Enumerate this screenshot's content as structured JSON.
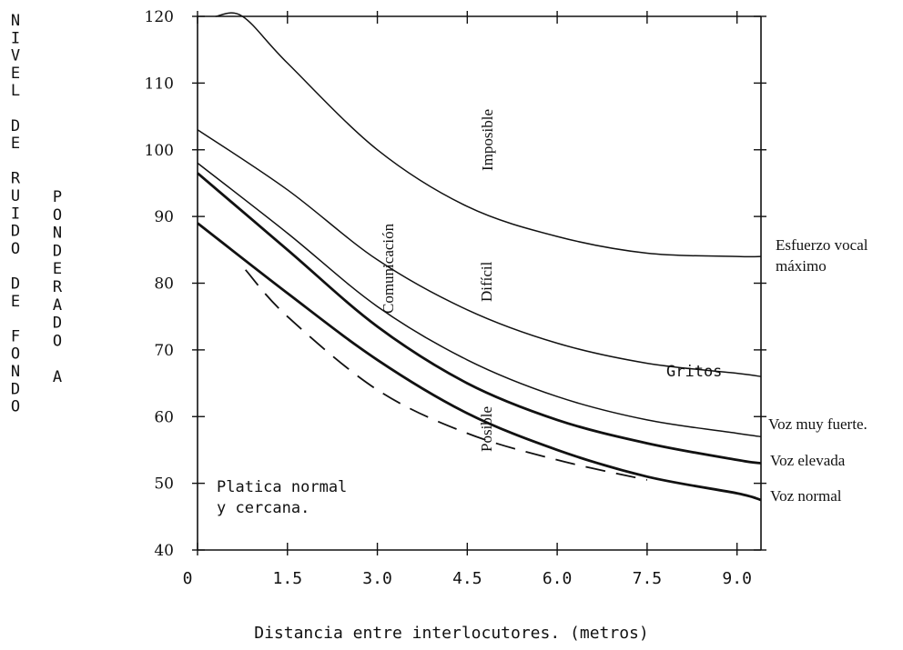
{
  "chart_data": {
    "type": "line",
    "title": "",
    "xlabel": "Distancia entre interlocutores. (metros)",
    "ylabel_primary": "NIVEL DE RUIDO DE FONDO",
    "ylabel_secondary": "PONDERADO A",
    "xlim": [
      0,
      9.4
    ],
    "ylim": [
      40,
      120
    ],
    "x_ticks": [
      0,
      1.5,
      3.0,
      4.5,
      6.0,
      7.5,
      9.0
    ],
    "x_tick_labels": [
      "0",
      "1.5",
      "3.0",
      "4.5",
      "6.0",
      "7.5",
      "9.0"
    ],
    "y_ticks": [
      40,
      50,
      60,
      70,
      80,
      90,
      100,
      110,
      120
    ],
    "y_tick_labels": [
      "40",
      "50",
      "60",
      "70",
      "80",
      "90",
      "100",
      "110",
      "120"
    ],
    "grid": false,
    "series": [
      {
        "name": "Esfuerzo vocal máximo",
        "style": "solid-thin",
        "x": [
          0.3,
          0.75,
          1.5,
          3.0,
          4.5,
          6.0,
          7.5,
          9.0,
          9.4
        ],
        "y": [
          120,
          120,
          113,
          100,
          91.5,
          87,
          84.5,
          84,
          84
        ]
      },
      {
        "name": "Gritos",
        "style": "solid-thin",
        "x": [
          0,
          1.5,
          3.0,
          4.5,
          6.0,
          7.5,
          9.0,
          9.4
        ],
        "y": [
          103,
          94,
          83.5,
          76,
          71,
          68,
          66.5,
          66
        ]
      },
      {
        "name": "Voz muy fuerte.",
        "style": "solid-thin",
        "x": [
          0,
          1.5,
          3.0,
          4.5,
          6.0,
          7.5,
          9.0,
          9.4
        ],
        "y": [
          98,
          87.5,
          76.5,
          68.5,
          63,
          59.5,
          57.5,
          57
        ]
      },
      {
        "name": "Voz elevada",
        "style": "solid-thick",
        "x": [
          0,
          1.5,
          3.0,
          4.5,
          6.0,
          7.5,
          9.0,
          9.4
        ],
        "y": [
          96.5,
          85,
          73.5,
          65,
          59.5,
          56,
          53.5,
          53
        ]
      },
      {
        "name": "Voz normal",
        "style": "solid-thick",
        "x": [
          0,
          1.5,
          3.0,
          4.5,
          6.0,
          7.5,
          9.0,
          9.4
        ],
        "y": [
          89,
          78.5,
          68.5,
          60.5,
          55,
          51,
          48.5,
          47.5
        ]
      },
      {
        "name": "",
        "style": "dashed",
        "x": [
          0.8,
          1.5,
          3.0,
          4.5,
          6.0,
          7.5
        ],
        "y": [
          82,
          75,
          64,
          57.5,
          53.5,
          50.5
        ]
      }
    ],
    "annotations": [
      {
        "text": "Imposible",
        "region": "between esfuerzo vocal maximo and gritos"
      },
      {
        "text": "Comunicación",
        "region": "between gritos and voz normal"
      },
      {
        "text": "Difícil",
        "region": "between gritos and voz muy fuerte"
      },
      {
        "text": "Posible",
        "region": "between voz elevada and voz normal"
      },
      {
        "text": "Platica normal",
        "region": "lower-left"
      },
      {
        "text": "y cercana.",
        "region": "lower-left"
      }
    ],
    "series_label_texts": {
      "esfuerzo_line1": "Esfuerzo vocal",
      "esfuerzo_line2": "máximo",
      "gritos": "Gritos",
      "voz_muy_fuerte": "Voz muy fuerte.",
      "voz_elevada": "Voz elevada",
      "voz_normal": "Voz normal"
    },
    "annotation_texts": {
      "imposible": "Imposible",
      "comunicacion": "Comunicación",
      "dificil": "Difícil",
      "posible": "Posible",
      "platica1": "Platica normal",
      "platica2": "y cercana."
    }
  }
}
